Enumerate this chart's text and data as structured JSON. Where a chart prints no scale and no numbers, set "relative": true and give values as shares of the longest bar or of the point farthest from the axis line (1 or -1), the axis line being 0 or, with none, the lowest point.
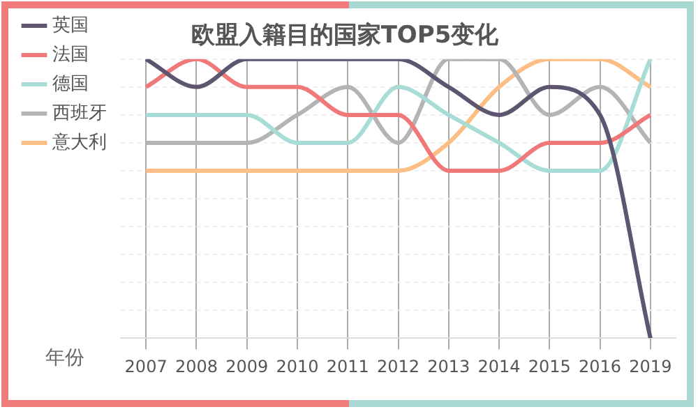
{
  "chart_data": {
    "type": "line",
    "title": "欧盟入籍目的国家TOP5变化",
    "xlabel": "年份",
    "categories": [
      "2007",
      "2008",
      "2009",
      "2010",
      "2011",
      "2012",
      "2013",
      "2014",
      "2015",
      "2016",
      "2019"
    ],
    "relative": true,
    "grid": true,
    "legend": "left",
    "marker": "none",
    "line_style": "solid",
    "series": [
      {
        "name": "英国",
        "color": "#5e5570",
        "values": [
          1,
          0.9,
          1,
          1,
          1,
          1,
          0.9,
          0.8,
          0.9,
          0.8,
          0
        ]
      },
      {
        "name": "法国",
        "color": "#f07878",
        "values": [
          0.9,
          1,
          0.9,
          0.9,
          0.8,
          0.8,
          0.6,
          0.6,
          0.7,
          0.7,
          0.8
        ]
      },
      {
        "name": "德国",
        "color": "#a8dcd6",
        "values": [
          0.8,
          0.8,
          0.8,
          0.7,
          0.7,
          0.9,
          0.8,
          0.7,
          0.6,
          0.6,
          1
        ]
      },
      {
        "name": "西班牙",
        "color": "#b4b4b4",
        "values": [
          0.7,
          0.7,
          0.7,
          0.8,
          0.9,
          0.7,
          1,
          1,
          0.8,
          0.9,
          0.7
        ]
      },
      {
        "name": "意大利",
        "color": "#fcbe84",
        "values": [
          0.6,
          0.6,
          0.6,
          0.6,
          0.6,
          0.6,
          0.7,
          0.9,
          1,
          1,
          0.9
        ]
      }
    ]
  }
}
